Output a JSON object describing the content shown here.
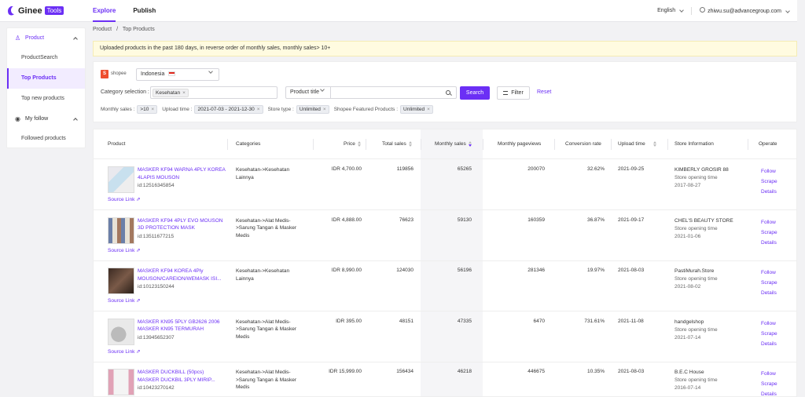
{
  "header": {
    "logo_text": "Ginee",
    "logo_badge": "Tools",
    "nav": [
      {
        "label": "Explore",
        "active": true
      },
      {
        "label": "Publish",
        "active": false
      }
    ],
    "language": "English",
    "user_email": "zhiwu.su@advancegroup.com"
  },
  "sidebar": {
    "groups": [
      {
        "label": "Product",
        "icon": "product-icon",
        "items": [
          "ProductSearch",
          "Top Products",
          "Top new products"
        ]
      },
      {
        "label": "My follow",
        "icon": "follow-icon",
        "items": [
          "Followed products"
        ]
      }
    ]
  },
  "breadcrumb": {
    "root": "Product",
    "separator": "/",
    "current": "Top Products"
  },
  "notice": "Uploaded products in the past 180 days, in reverse order of monthly sales, monthly sales> 10+",
  "filter": {
    "platform": "shopee",
    "country": "Indonesia",
    "category_label": "Category selection :",
    "category_tag": "Kesehatan",
    "title_select": "Product title",
    "search_input_value": "",
    "search_button": "Search",
    "filter_button": "Filter",
    "reset": "Reset",
    "criteria": [
      {
        "label": "Monthly sales :",
        "value": ">10"
      },
      {
        "label": "Upload time :",
        "value": "2021-07-03 - 2021-12-30"
      },
      {
        "label": "Store type :",
        "value": "Unlimited"
      },
      {
        "label": "Shopee Featured Products :",
        "value": "Unlimited"
      }
    ]
  },
  "table": {
    "columns": [
      "Product",
      "Categories",
      "Price",
      "Total sales",
      "Monthly sales",
      "Monthly pageviews",
      "Conversion rate",
      "Upload time",
      "Store Information",
      "Operate"
    ],
    "source_link_label": "Source Link",
    "store_opening_label": "Store opening time",
    "operations": [
      "Follow",
      "Scrape",
      "Details"
    ],
    "rows": [
      {
        "name": "MASKER KF94 WARNA 4PLY KOREA 4LAPIS MOUSON",
        "id": "id:12516345854",
        "category": "Kesehatan->Kesehatan Lainnya",
        "price": "IDR 4,700.00",
        "total_sales": "119856",
        "monthly_sales": "65265",
        "pageviews": "200070",
        "conversion": "32.62%",
        "upload": "2021-09-25",
        "store": "KIMBERLY GROSIR 88",
        "store_open": "2017-08-27"
      },
      {
        "name": "MASKER KF94 4PLY EVO MOUSON 3D PROTECTION MASK",
        "id": "id:13511677215",
        "category": "Kesehatan->Alat Medis->Sarung Tangan & Masker Medis",
        "price": "IDR 4,888.00",
        "total_sales": "76623",
        "monthly_sales": "59130",
        "pageviews": "160359",
        "conversion": "36.87%",
        "upload": "2021-09-17",
        "store": "CHEL'S BEAUTY STORE",
        "store_open": "2021-01-06"
      },
      {
        "name": "MASKER KF94 KOREA 4Ply MOUSON/CAREION/WEMASK ISI...",
        "id": "id:10123150244",
        "category": "Kesehatan->Kesehatan Lainnya",
        "price": "IDR 8,990.00",
        "total_sales": "124030",
        "monthly_sales": "56196",
        "pageviews": "281346",
        "conversion": "19.97%",
        "upload": "2021-08-03",
        "store": "PastiMurah.Store",
        "store_open": "2021-08-02"
      },
      {
        "name": "MASKER KN95 5PLY GB2626 2006 MASKER KN95 TERMURAH",
        "id": "id:13945652307",
        "category": "Kesehatan->Alat Medis->Sarung Tangan & Masker Medis",
        "price": "IDR 395.00",
        "total_sales": "48151",
        "monthly_sales": "47335",
        "pageviews": "6470",
        "conversion": "731.61%",
        "upload": "2021-11-08",
        "store": "handgelshop",
        "store_open": "2021-07-14"
      },
      {
        "name": "MASKER DUCKBILL (50pcs) MASKER DUCKBIL 3PLY MIRIP...",
        "id": "id:10423270142",
        "category": "Kesehatan->Alat Medis->Sarung Tangan & Masker Medis",
        "price": "IDR 15,999.00",
        "total_sales": "156434",
        "monthly_sales": "46218",
        "pageviews": "446675",
        "conversion": "10.35%",
        "upload": "2021-08-03",
        "store": "B.E.C House",
        "store_open": "2016-07-14"
      }
    ]
  },
  "colors": {
    "accent": "#6b2ff5",
    "notice_bg": "#fffbe0",
    "shopee": "#ee4d2d"
  }
}
